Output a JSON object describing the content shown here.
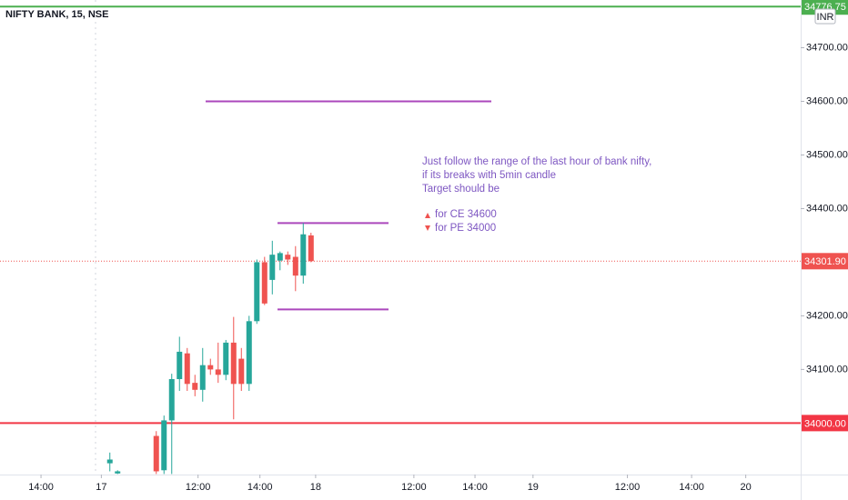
{
  "chart_data": {
    "type": "candlestick",
    "title": "NIFTY BANK, 15, NSE",
    "currency": "INR",
    "x": [
      0,
      1,
      6,
      7,
      8,
      9,
      10,
      11,
      12,
      13,
      14,
      15,
      16,
      17,
      18,
      19,
      20,
      21,
      22,
      23,
      24,
      25,
      26
    ],
    "open": [
      33925,
      33906,
      33976,
      33912,
      34005,
      34082,
      34130,
      34075,
      34062,
      34108,
      34100,
      34090,
      34150,
      34120,
      34073,
      34190,
      34300,
      34267,
      34303,
      34314,
      34310,
      34275,
      34350
    ],
    "high": [
      33945,
      33912,
      33985,
      34014,
      34092,
      34161,
      34140,
      34090,
      34140,
      34120,
      34150,
      34155,
      34198,
      34140,
      34200,
      34305,
      34310,
      34340,
      34320,
      34320,
      34330,
      34373,
      34355
    ],
    "low": [
      33910,
      33905,
      33905,
      33905,
      33905,
      34060,
      34060,
      34050,
      34040,
      34090,
      34075,
      34080,
      34007,
      34060,
      34060,
      34185,
      34220,
      34240,
      34285,
      34295,
      34246,
      34260,
      34300
    ],
    "close": [
      33932,
      33910,
      33910,
      34005,
      34082,
      34133,
      34073,
      34062,
      34108,
      34100,
      34090,
      34150,
      34073,
      34073,
      34190,
      34300,
      34223,
      34314,
      34317,
      34305,
      34275,
      34352,
      34302
    ],
    "up_color": "#26a69a",
    "down_color": "#ef5350",
    "xlim": [
      -14.2,
      89.3
    ],
    "ylim": [
      33904,
      34789
    ],
    "xticks": [
      {
        "value": -8.9,
        "label": "14:00"
      },
      {
        "value": -1.1,
        "label": "17"
      },
      {
        "value": 11.4,
        "label": "12:00"
      },
      {
        "value": 19.4,
        "label": "14:00"
      },
      {
        "value": 26.6,
        "label": "18"
      },
      {
        "value": 39.3,
        "label": "12:00"
      },
      {
        "value": 47.2,
        "label": "14:00"
      },
      {
        "value": 54.7,
        "label": "19"
      },
      {
        "value": 66.9,
        "label": "12:00"
      },
      {
        "value": 75.2,
        "label": "14:00"
      },
      {
        "value": 82.2,
        "label": "20"
      }
    ],
    "yticks": [
      {
        "value": 34100,
        "label": "34100.00"
      },
      {
        "value": 34200,
        "label": "34200.00"
      },
      {
        "value": 34400,
        "label": "34400.00"
      },
      {
        "value": 34500,
        "label": "34500.00"
      },
      {
        "value": 34600,
        "label": "34600.00"
      },
      {
        "value": 34700,
        "label": "34700.00"
      }
    ],
    "price_markers": [
      {
        "value": 34776.75,
        "label": "34776.75",
        "color": "#4caf50"
      },
      {
        "value": 34301.9,
        "label": "34301.90",
        "color": "#ef5350"
      },
      {
        "value": 34000,
        "label": "34000.00",
        "color": "#f23645"
      }
    ],
    "levels": [
      {
        "value": 34776.75,
        "color": "#4caf50"
      },
      {
        "value": 34000,
        "color": "#f23645"
      },
      {
        "value": 34600,
        "color": "#ab47bc"
      },
      {
        "value": 34373,
        "color": "#ab47bc"
      },
      {
        "value": 34212,
        "color": "#ab47bc"
      }
    ],
    "annotation": [
      "Just follow the range of the last hour of bank nifty,",
      "if its breaks with 5min candle",
      "Target should be",
      "for CE 34600",
      "for PE 34000"
    ]
  }
}
